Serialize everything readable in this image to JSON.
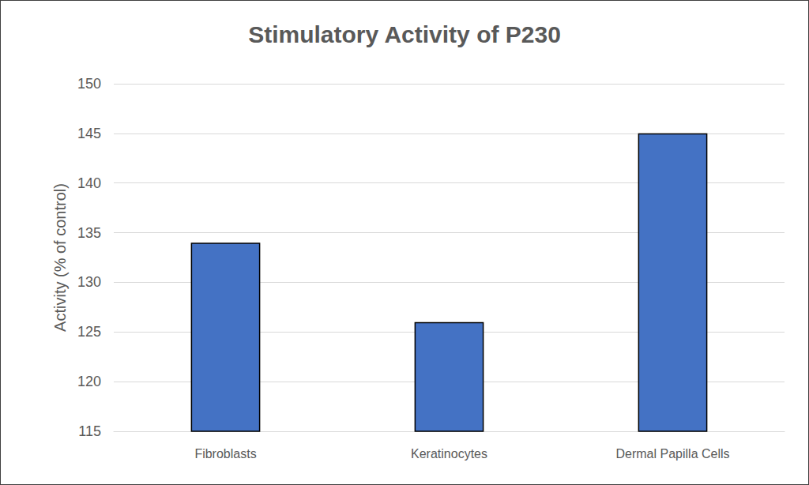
{
  "chart_data": {
    "type": "bar",
    "title": "Stimulatory Activity of P230",
    "y_label": "Activity (% of control)",
    "categories": [
      "Fibroblasts",
      "Keratinocytes",
      "Dermal Papilla Cells"
    ],
    "values": [
      134,
      126,
      145
    ],
    "color": "#4472c4",
    "ylim": [
      115,
      150
    ],
    "yticks": [
      115,
      120,
      125,
      130,
      135,
      140,
      145,
      150
    ],
    "grid": true
  }
}
